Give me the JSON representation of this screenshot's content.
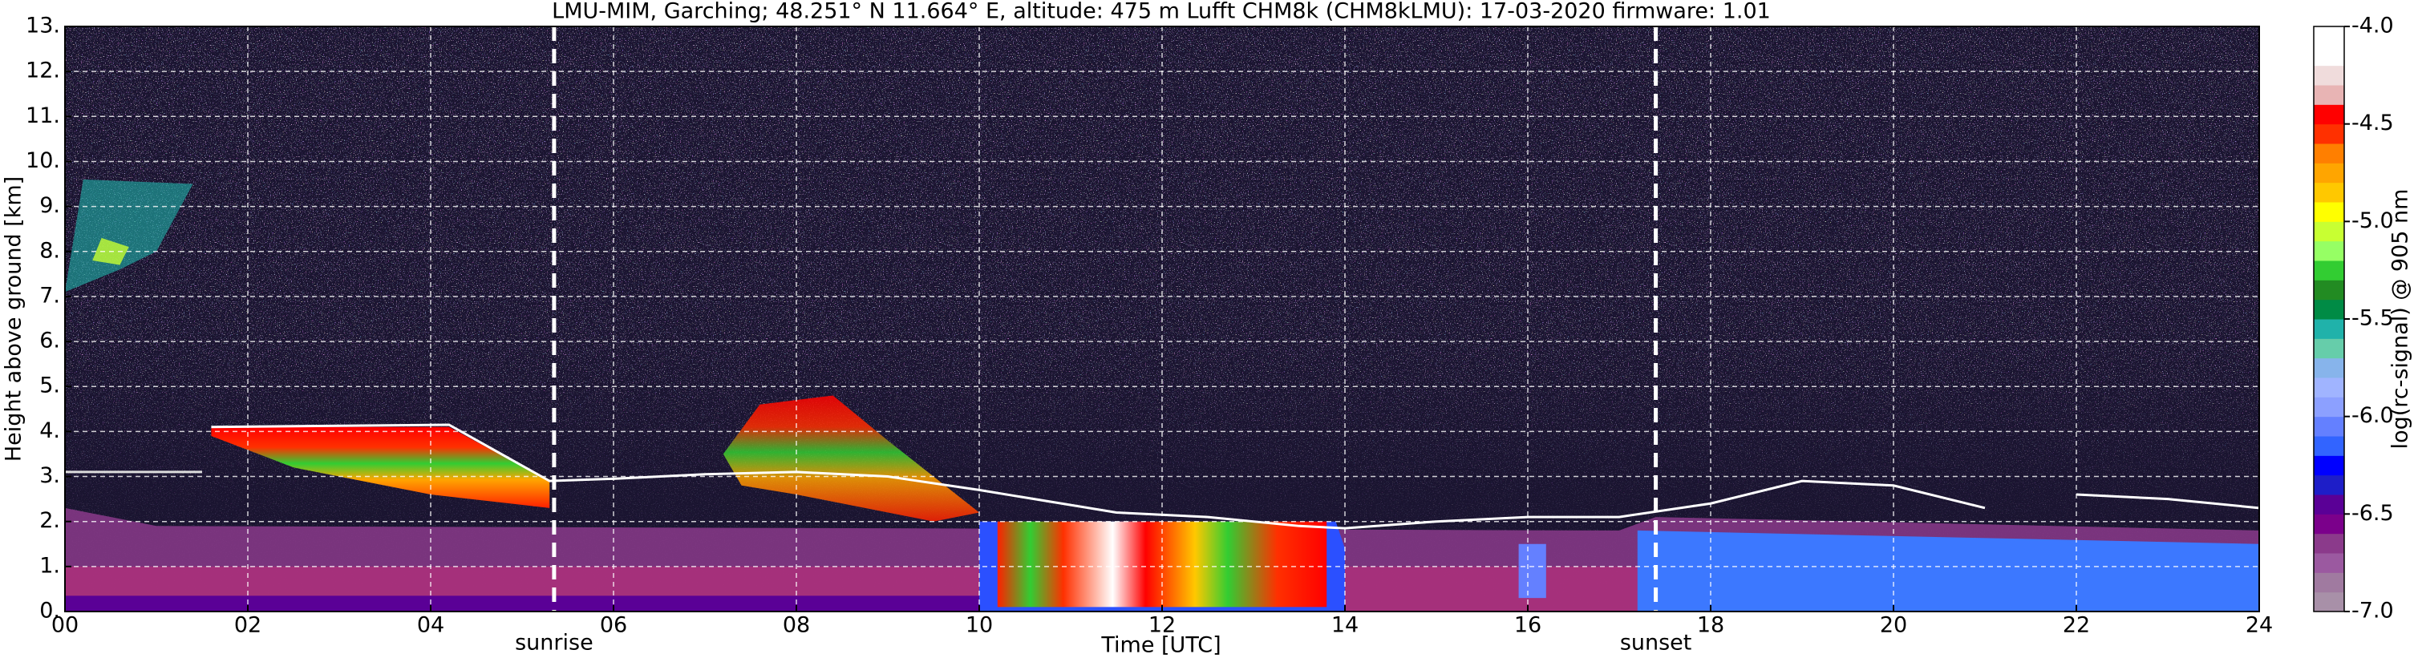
{
  "chart_data": {
    "type": "heatmap",
    "title": "LMU-MIM, Garching; 48.251° N 11.664° E, altitude: 475 m    Lufft CHM8k (CHM8kLMU): 17-03-2020    firmware: 1.01",
    "xlabel": "Time [UTC]",
    "ylabel": "Height above ground [km]",
    "xlim": [
      0,
      24
    ],
    "ylim": [
      0,
      13
    ],
    "xticks": [
      {
        "value": 0,
        "label": "00"
      },
      {
        "value": 2,
        "label": "02"
      },
      {
        "value": 4,
        "label": "04"
      },
      {
        "value": 6,
        "label": "06"
      },
      {
        "value": 8,
        "label": "08"
      },
      {
        "value": 10,
        "label": "10"
      },
      {
        "value": 12,
        "label": "12"
      },
      {
        "value": 14,
        "label": "14"
      },
      {
        "value": 16,
        "label": "16"
      },
      {
        "value": 18,
        "label": "18"
      },
      {
        "value": 20,
        "label": "20"
      },
      {
        "value": 22,
        "label": "22"
      },
      {
        "value": 24,
        "label": "24"
      }
    ],
    "yticks": [
      {
        "value": 0,
        "label": "0."
      },
      {
        "value": 1,
        "label": "1."
      },
      {
        "value": 2,
        "label": "2."
      },
      {
        "value": 3,
        "label": "3."
      },
      {
        "value": 4,
        "label": "4."
      },
      {
        "value": 5,
        "label": "5."
      },
      {
        "value": 6,
        "label": "6."
      },
      {
        "value": 7,
        "label": "7."
      },
      {
        "value": 8,
        "label": "8."
      },
      {
        "value": 9,
        "label": "9."
      },
      {
        "value": 10,
        "label": "10."
      },
      {
        "value": 11,
        "label": "11."
      },
      {
        "value": 12,
        "label": "12."
      },
      {
        "value": 13,
        "label": "13."
      }
    ],
    "grid": true,
    "annotations": [
      {
        "label": "sunrise",
        "x": 5.35
      },
      {
        "label": "sunset",
        "x": 17.4
      }
    ],
    "colorbar": {
      "label": "log(rc-signal) @ 905 nm",
      "lim": [
        -7,
        -4
      ],
      "ticks": [
        {
          "value": -4,
          "label": "-4.0"
        },
        {
          "value": -4.5,
          "label": "-4.5"
        },
        {
          "value": -5,
          "label": "-5.0"
        },
        {
          "value": -5.5,
          "label": "-5.5"
        },
        {
          "value": -6,
          "label": "-6.0"
        },
        {
          "value": -6.5,
          "label": "-6.5"
        },
        {
          "value": -7,
          "label": "-7.0"
        }
      ],
      "colors": [
        "#a890a8",
        "#a07aa0",
        "#9b59a0",
        "#8b3a8b",
        "#7b008b",
        "#5a0096",
        "#1e1ec8",
        "#0000ff",
        "#3264ff",
        "#6480ff",
        "#8ca0ff",
        "#a0b4ff",
        "#87b4eb",
        "#66cdaa",
        "#20b2aa",
        "#008b45",
        "#228b22",
        "#32cd32",
        "#96ff64",
        "#c8ff32",
        "#ffff00",
        "#ffc800",
        "#ffa500",
        "#ff7f00",
        "#ff3000",
        "#ff0000",
        "#e8b4b4",
        "#f0dcdc",
        "#ffffff",
        "#ffffff"
      ]
    }
  }
}
